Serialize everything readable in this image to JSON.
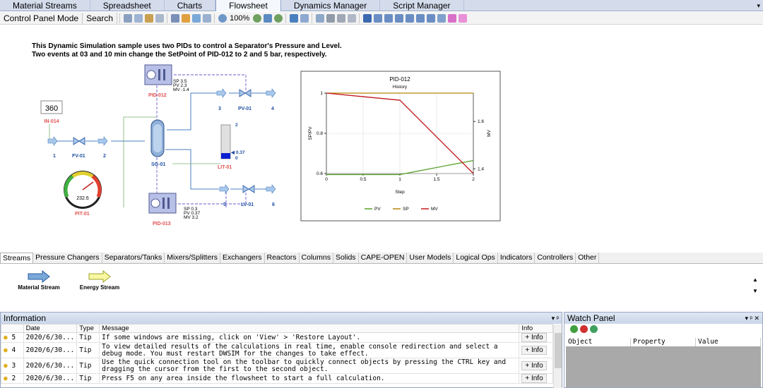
{
  "tabs": [
    {
      "label": "Material Streams"
    },
    {
      "label": "Spreadsheet"
    },
    {
      "label": "Charts"
    },
    {
      "label": "Flowsheet",
      "active": true
    },
    {
      "label": "Dynamics Manager"
    },
    {
      "label": "Script Manager"
    }
  ],
  "toolbar": {
    "control_panel_mode": "Control Panel Mode",
    "search": "Search",
    "zoom": "100%"
  },
  "intro": {
    "line1": "This Dynamic Simulation sample uses two PIDs to control a Separator's Pressure and Level.",
    "line2": "Two events at 03 and 10 min change the SetPoint of PID-012 to 2 and 5 bar, respectively."
  },
  "flowsheet": {
    "pid012": {
      "name": "PID-012",
      "sp": "SP 3.5",
      "pv": "PV 2.3",
      "mv": "MV -1.4"
    },
    "pid013": {
      "name": "PID-013",
      "sp": "SP 0.3",
      "pv": "PV 0.37",
      "mv": "MV 3.2"
    },
    "in014": {
      "name": "IN-014",
      "value": "360"
    },
    "pit01": {
      "name": "PIT-01",
      "value": "232.6"
    },
    "lit01": {
      "name": "LIT-01",
      "top": "2",
      "level": "0.37",
      "bottom": "0"
    },
    "separator": "SG-01",
    "fv01": "FV-01",
    "pv01": "PV-01",
    "lv01": "LV-01",
    "streams": {
      "s1": "1",
      "s2": "2",
      "s3": "3",
      "s4": "4",
      "s5": "5",
      "s6": "6"
    }
  },
  "chart_data": {
    "type": "line",
    "title": "PID-012",
    "subtitle": "History",
    "xlabel": "Step",
    "ylabel": "SP/PV",
    "y2label": "MV",
    "xlim": [
      0,
      2
    ],
    "ylim": [
      0.6,
      1.0
    ],
    "y2lim": [
      1.38,
      1.72
    ],
    "x_ticks": [
      "0",
      "0.5",
      "1",
      "1.5",
      "2"
    ],
    "y_ticks": [
      "0.6",
      "0.8",
      "1"
    ],
    "y2_ticks": [
      "1.4",
      "1.6"
    ],
    "series": [
      {
        "name": "PV",
        "color": "#5aa02c",
        "axis": "left",
        "x": [
          0,
          1,
          2
        ],
        "y": [
          0.595,
          0.595,
          0.665
        ]
      },
      {
        "name": "SP",
        "color": "#b8860b",
        "axis": "left",
        "x": [
          0,
          1,
          2
        ],
        "y": [
          1.0,
          1.0,
          1.0
        ]
      },
      {
        "name": "MV",
        "color": "#c0181c",
        "axis": "right",
        "x": [
          0,
          1,
          2
        ],
        "y": [
          1.72,
          1.69,
          1.38
        ]
      }
    ],
    "legend_position": "bottom"
  },
  "palette": {
    "tabs": [
      "Streams",
      "Pressure Changers",
      "Separators/Tanks",
      "Mixers/Splitters",
      "Exchangers",
      "Reactors",
      "Columns",
      "Solids",
      "CAPE-OPEN",
      "User Models",
      "Logical Ops",
      "Indicators",
      "Controllers",
      "Other"
    ],
    "items": {
      "material": "Material Stream",
      "energy": "Energy Stream"
    }
  },
  "info": {
    "title": "Information",
    "columns": [
      "Date",
      "Type",
      "Message",
      "Info"
    ],
    "rows": [
      {
        "num": "5",
        "date": "2020/6/30...",
        "type": "Tip",
        "message": "If some windows are missing, click on 'View' > 'Restore Layout'.",
        "btn": "+ Info"
      },
      {
        "num": "4",
        "date": "2020/6/30...",
        "type": "Tip",
        "message": "To view detailed results of the calculations in real time, enable console redirection and select a debug mode. You must restart DWSIM for the changes to take effect.",
        "btn": "+ Info"
      },
      {
        "num": "3",
        "date": "2020/6/30...",
        "type": "Tip",
        "message": "Use the quick connection tool on the toolbar to quickly connect objects by pressing the CTRL key and dragging the cursor from the first to the second object.",
        "btn": "+ Info"
      },
      {
        "num": "2",
        "date": "2020/6/30...",
        "type": "Tip",
        "message": "Press F5 on any area inside the flowsheet to start a full calculation.",
        "btn": "+ Info"
      }
    ]
  },
  "watch": {
    "title": "Watch Panel",
    "columns": [
      "Object",
      "Property",
      "Value"
    ]
  },
  "colors": {
    "accent": "#4a7fc0",
    "controller": "#6a5acd",
    "stream": "#5b9bd5",
    "red_label": "#e05050"
  }
}
